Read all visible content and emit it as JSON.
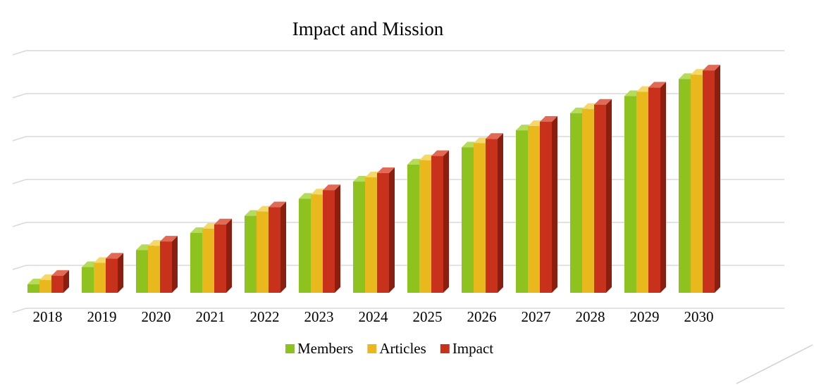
{
  "chart_data": {
    "type": "bar",
    "title": "Impact and Mission",
    "xlabel": "",
    "ylabel": "",
    "categories": [
      "2018",
      "2019",
      "2020",
      "2021",
      "2022",
      "2023",
      "2024",
      "2025",
      "2026",
      "2027",
      "2028",
      "2029",
      "2030"
    ],
    "series": [
      {
        "name": "Members",
        "values": [
          0.5,
          1.5,
          2.5,
          3.5,
          4.5,
          5.5,
          6.5,
          7.5,
          8.5,
          9.5,
          10.5,
          11.5,
          12.5
        ]
      },
      {
        "name": "Articles",
        "values": [
          0.75,
          1.75,
          2.75,
          3.75,
          4.75,
          5.75,
          6.75,
          7.75,
          8.75,
          9.75,
          10.75,
          11.75,
          12.75
        ]
      },
      {
        "name": "Impact",
        "values": [
          1.0,
          2.0,
          3.0,
          4.0,
          5.0,
          6.0,
          7.0,
          8.0,
          9.0,
          10.0,
          11.0,
          12.0,
          13.0
        ]
      }
    ],
    "ylim": [
      0,
      14
    ],
    "y_tick_labels_visible": false,
    "grid": true,
    "bar_style": "3d",
    "legend_position": "bottom",
    "colors": {
      "Members": {
        "face": "#8dc21f",
        "side": "#5f8a12",
        "top": "#b4dc58"
      },
      "Articles": {
        "face": "#e8b81c",
        "side": "#a9830d",
        "top": "#f4d86a"
      },
      "Impact": {
        "face": "#c8321c",
        "side": "#8a1f10",
        "top": "#e06a55"
      },
      "gridline": "#d9d9d9"
    }
  }
}
